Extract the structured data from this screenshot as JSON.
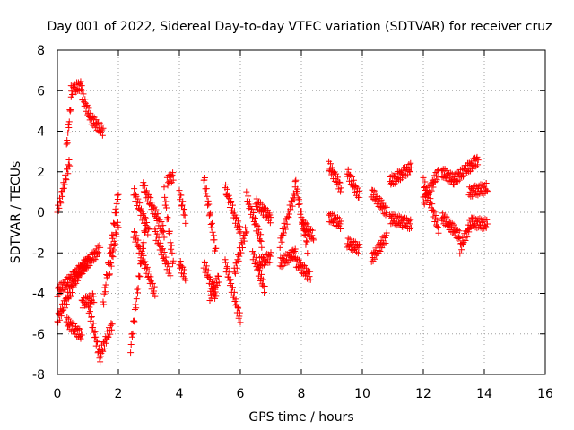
{
  "chart_data": {
    "type": "scatter",
    "title": "Day 001 of 2022, Sidereal Day-to-day VTEC variation (SDTVAR) for receiver cruz",
    "xlabel": "GPS time / hours",
    "ylabel": "SDTVAR / TECUs",
    "xlim": [
      0,
      16
    ],
    "ylim": [
      -8,
      8
    ],
    "xticks": [
      "0",
      "2",
      "4",
      "6",
      "8",
      "10",
      "12",
      "14",
      "16"
    ],
    "yticks": [
      "-8",
      "-6",
      "-4",
      "-2",
      "0",
      "2",
      "4",
      "6",
      "8"
    ],
    "grid": true,
    "marker": "+",
    "color": "#ff0000",
    "segments": [
      {
        "t0": 0.0,
        "t1": 0.4,
        "v0": 0.0,
        "v1": 2.5
      },
      {
        "t0": 0.3,
        "t1": 0.45,
        "v0": 3.2,
        "v1": 5.5
      },
      {
        "t0": 0.45,
        "t1": 0.8,
        "v0": 6.0,
        "v1": 6.3
      },
      {
        "t0": 0.8,
        "t1": 1.1,
        "v0": 5.8,
        "v1": 4.6
      },
      {
        "t0": 1.1,
        "t1": 1.5,
        "v0": 4.6,
        "v1": 4.0
      },
      {
        "t0": 0.0,
        "t1": 0.7,
        "v0": -5.3,
        "v1": -3.0
      },
      {
        "t0": 0.7,
        "t1": 1.4,
        "v0": -3.0,
        "v1": -1.8
      },
      {
        "t0": 0.0,
        "t1": 0.5,
        "v0": -3.9,
        "v1": -3.2
      },
      {
        "t0": 0.5,
        "t1": 1.0,
        "v0": -3.2,
        "v1": -2.4
      },
      {
        "t0": 0.3,
        "t1": 0.8,
        "v0": -5.4,
        "v1": -6.1
      },
      {
        "t0": 0.8,
        "t1": 1.2,
        "v0": -4.5,
        "v1": -4.2
      },
      {
        "t0": 1.0,
        "t1": 1.4,
        "v0": -4.5,
        "v1": -7.2
      },
      {
        "t0": 1.4,
        "t1": 1.8,
        "v0": -7.0,
        "v1": -5.5
      },
      {
        "t0": 1.5,
        "t1": 2.0,
        "v0": -4.5,
        "v1": 1.0
      },
      {
        "t0": 1.7,
        "t1": 2.0,
        "v0": -3.0,
        "v1": -0.5
      },
      {
        "t0": 2.4,
        "t1": 2.9,
        "v0": -6.7,
        "v1": -0.5
      },
      {
        "t0": 2.5,
        "t1": 3.2,
        "v0": -1.0,
        "v1": -4.0
      },
      {
        "t0": 2.5,
        "t1": 3.0,
        "v0": 1.0,
        "v1": -1.0
      },
      {
        "t0": 2.8,
        "t1": 3.5,
        "v0": 1.3,
        "v1": -1.0
      },
      {
        "t0": 3.2,
        "t1": 3.7,
        "v0": -1.0,
        "v1": -3.0
      },
      {
        "t0": 3.5,
        "t1": 3.8,
        "v0": 1.0,
        "v1": -2.5
      },
      {
        "t0": 3.6,
        "t1": 3.8,
        "v0": 1.5,
        "v1": 1.8
      },
      {
        "t0": 4.0,
        "t1": 4.2,
        "v0": 1.0,
        "v1": -0.3
      },
      {
        "t0": 4.0,
        "t1": 4.2,
        "v0": -2.5,
        "v1": -3.2
      },
      {
        "t0": 4.8,
        "t1": 5.2,
        "v0": 1.8,
        "v1": -2.0
      },
      {
        "t0": 4.8,
        "t1": 5.2,
        "v0": -2.5,
        "v1": -4.2
      },
      {
        "t0": 5.0,
        "t1": 5.3,
        "v0": -4.2,
        "v1": -3.2
      },
      {
        "t0": 5.5,
        "t1": 6.0,
        "v0": 1.2,
        "v1": -1.0
      },
      {
        "t0": 5.5,
        "t1": 6.0,
        "v0": -2.5,
        "v1": -5.3
      },
      {
        "t0": 5.8,
        "t1": 6.2,
        "v0": -3.0,
        "v1": -0.8
      },
      {
        "t0": 6.2,
        "t1": 6.7,
        "v0": 0.8,
        "v1": -1.5
      },
      {
        "t0": 6.4,
        "t1": 6.8,
        "v0": -2.0,
        "v1": -3.8
      },
      {
        "t0": 6.5,
        "t1": 7.0,
        "v0": 0.5,
        "v1": -0.3
      },
      {
        "t0": 6.6,
        "t1": 7.0,
        "v0": -2.5,
        "v1": -2.2
      },
      {
        "t0": 7.3,
        "t1": 7.8,
        "v0": -1.5,
        "v1": 1.0
      },
      {
        "t0": 7.3,
        "t1": 7.8,
        "v0": -2.5,
        "v1": -2.0
      },
      {
        "t0": 7.8,
        "t1": 8.2,
        "v0": 1.5,
        "v1": -1.8
      },
      {
        "t0": 7.8,
        "t1": 8.3,
        "v0": -2.4,
        "v1": -3.2
      },
      {
        "t0": 8.0,
        "t1": 8.4,
        "v0": -0.5,
        "v1": -1.2
      },
      {
        "t0": 8.9,
        "t1": 9.3,
        "v0": 2.3,
        "v1": 1.2
      },
      {
        "t0": 8.9,
        "t1": 9.3,
        "v0": -0.2,
        "v1": -0.6
      },
      {
        "t0": 9.5,
        "t1": 9.9,
        "v0": 2.0,
        "v1": 0.8
      },
      {
        "t0": 9.5,
        "t1": 9.9,
        "v0": -1.5,
        "v1": -1.8
      },
      {
        "t0": 10.3,
        "t1": 10.8,
        "v0": 1.0,
        "v1": 0.0
      },
      {
        "t0": 10.3,
        "t1": 10.8,
        "v0": -2.3,
        "v1": -1.2
      },
      {
        "t0": 10.9,
        "t1": 11.6,
        "v0": 1.5,
        "v1": 2.2
      },
      {
        "t0": 10.9,
        "t1": 11.6,
        "v0": -0.3,
        "v1": -0.6
      },
      {
        "t0": 12.0,
        "t1": 12.5,
        "v0": 0.5,
        "v1": 2.0
      },
      {
        "t0": 12.0,
        "t1": 12.5,
        "v0": 1.5,
        "v1": -0.8
      },
      {
        "t0": 12.6,
        "t1": 13.0,
        "v0": 2.0,
        "v1": 1.6
      },
      {
        "t0": 12.6,
        "t1": 13.2,
        "v0": -0.2,
        "v1": -1.2
      },
      {
        "t0": 13.0,
        "t1": 13.8,
        "v0": 1.6,
        "v1": 2.6
      },
      {
        "t0": 13.2,
        "t1": 13.6,
        "v0": -1.8,
        "v1": -0.4
      },
      {
        "t0": 13.5,
        "t1": 14.1,
        "v0": 1.0,
        "v1": 1.2
      },
      {
        "t0": 13.6,
        "t1": 14.1,
        "v0": -0.5,
        "v1": -0.6
      }
    ]
  }
}
